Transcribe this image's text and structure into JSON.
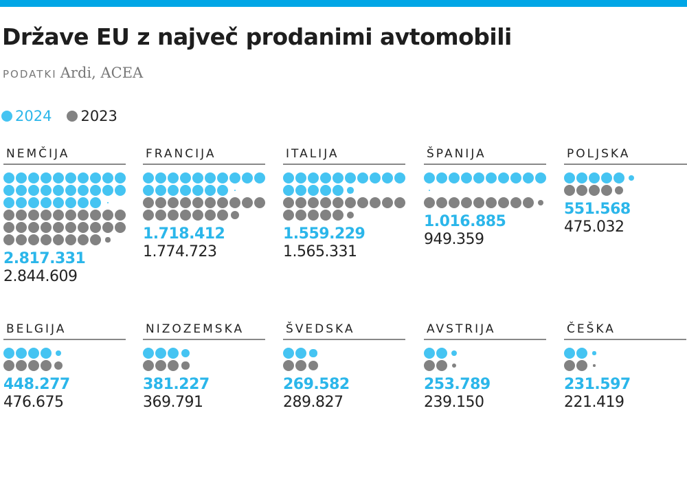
{
  "title": "Države EU z največ prodanimi avtomobili",
  "source_label": "PODATKI",
  "source_value": "Ardi, ACEA",
  "colors": {
    "2024": "#45c4f2",
    "2023": "#828282",
    "accent": "#00a6e6"
  },
  "legend": [
    {
      "label": "2024"
    },
    {
      "label": "2023"
    }
  ],
  "chart_data": {
    "type": "dot-matrix",
    "series_names": [
      "2024",
      "2023"
    ],
    "countries": [
      {
        "name": "NEMČIJA",
        "v2024": 2817331,
        "v2023": 2844609,
        "l2024": "2.817.331",
        "l2023": "2.844.609"
      },
      {
        "name": "FRANCIJA",
        "v2024": 1718412,
        "v2023": 1774723,
        "l2024": "1.718.412",
        "l2023": "1.774.723"
      },
      {
        "name": "ITALIJA",
        "v2024": 1559229,
        "v2023": 1565331,
        "l2024": "1.559.229",
        "l2023": "1.565.331"
      },
      {
        "name": "ŠPANIJA",
        "v2024": 1016885,
        "v2023": 949359,
        "l2024": "1.016.885",
        "l2023": "949.359"
      },
      {
        "name": "POLJSKA",
        "v2024": 551568,
        "v2023": 475032,
        "l2024": "551.568",
        "l2023": "475.032"
      },
      {
        "name": "BELGIJA",
        "v2024": 448277,
        "v2023": 476675,
        "l2024": "448.277",
        "l2023": "476.675"
      },
      {
        "name": "NIZOZEMSKA",
        "v2024": 381227,
        "v2023": 369791,
        "l2024": "381.227",
        "l2023": "369.791"
      },
      {
        "name": "ŠVEDSKA",
        "v2024": 269582,
        "v2023": 289827,
        "l2024": "269.582",
        "l2023": "289.827"
      },
      {
        "name": "AVSTRIJA",
        "v2024": 253789,
        "v2023": 239150,
        "l2024": "253.789",
        "l2023": "239.150"
      },
      {
        "name": "ČEŠKA",
        "v2024": 231597,
        "v2023": 221419,
        "l2024": "231.597",
        "l2023": "221.419"
      }
    ]
  }
}
